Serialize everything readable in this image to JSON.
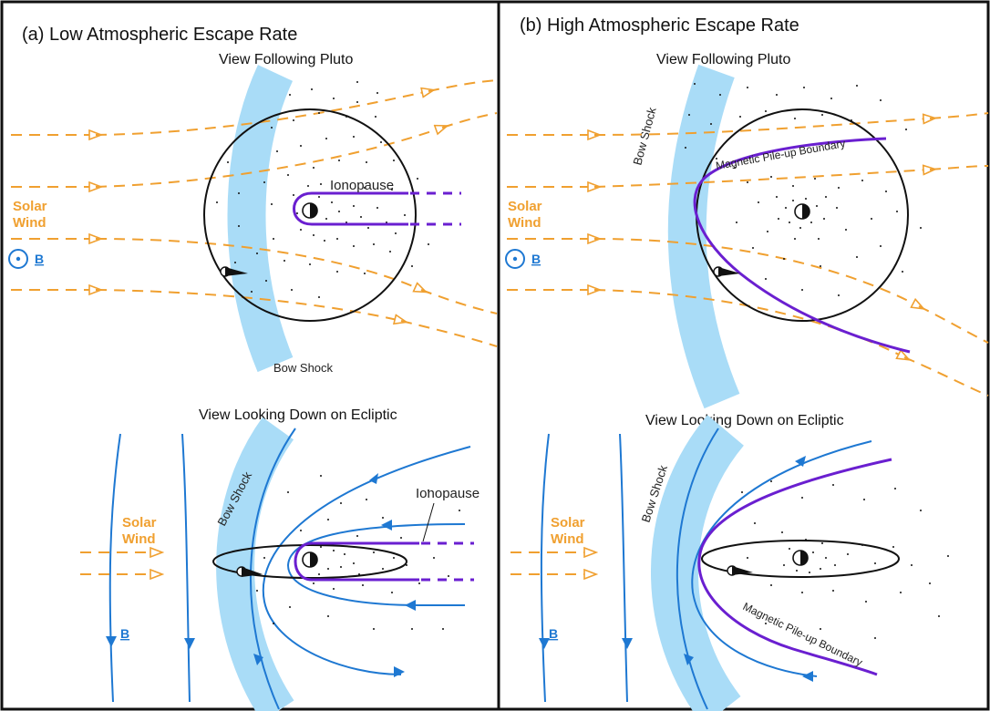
{
  "panels": {
    "a": {
      "title": "(a) Low Atmospheric Escape Rate"
    },
    "b": {
      "title": "(b) High Atmospheric Escape Rate"
    }
  },
  "views": {
    "following_pluto": "View Following Pluto",
    "ecliptic": "View Looking Down on Ecliptic"
  },
  "labels": {
    "solar": "Solar",
    "wind": "Wind",
    "b_field": "B",
    "bow_shock": "Bow Shock",
    "ionopause": "Ionopause",
    "mpb": "Magnetic Pile-up Boundary"
  },
  "colors": {
    "solar_wind": "#f0a030",
    "field_lines": "#1e78d2",
    "bow_shock_band": "#a9dcf7",
    "boundary": "#6a1fd0",
    "frame": "#111111"
  }
}
